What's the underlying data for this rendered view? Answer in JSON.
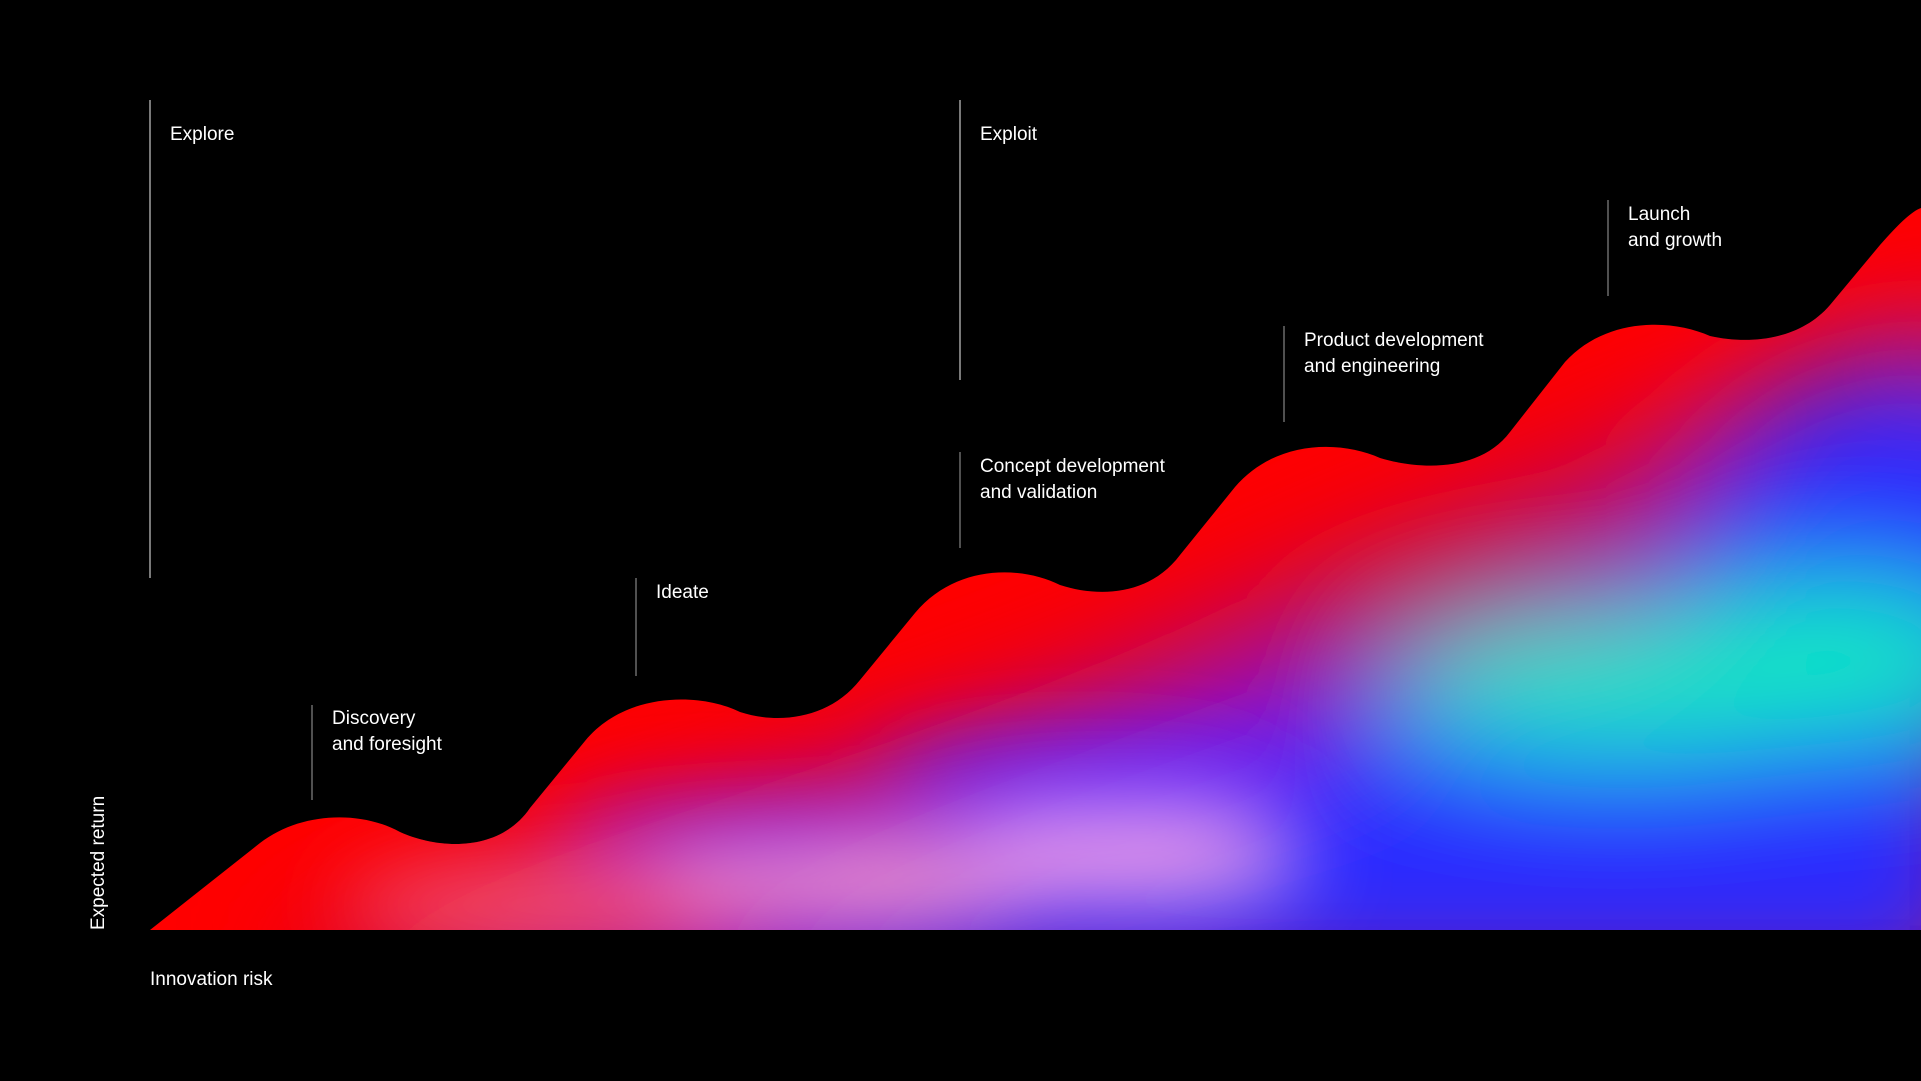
{
  "axes": {
    "y_label": "Expected return",
    "x_label": "Innovation risk"
  },
  "phases": [
    {
      "label": "Explore"
    },
    {
      "label": "Exploit"
    }
  ],
  "stages": [
    {
      "lines": [
        "Discovery",
        "and foresight"
      ]
    },
    {
      "lines": [
        "Ideate"
      ]
    },
    {
      "lines": [
        "Concept development",
        "and validation"
      ]
    },
    {
      "lines": [
        "Product development",
        "and engineering"
      ]
    },
    {
      "lines": [
        "Launch",
        "and growth"
      ]
    }
  ],
  "colors": {
    "background": "#000000",
    "line": "#bdbdbd",
    "red": "#ff0000",
    "crimson": "#c0103a",
    "violet": "#7a0ff0",
    "blue": "#2a2aff",
    "teal": "#00f5b8",
    "pink": "#f4a0d6",
    "text": "#ffffff"
  }
}
